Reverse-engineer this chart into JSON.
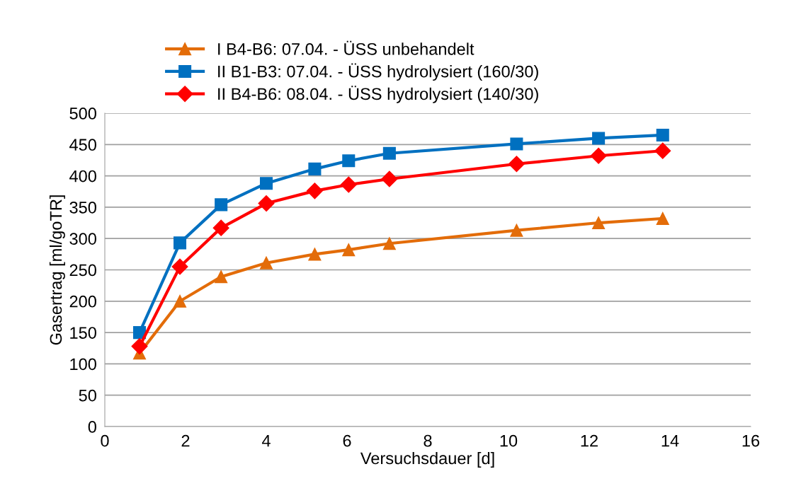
{
  "chart_data": {
    "type": "line",
    "xlabel": "Versuchsdauer [d]",
    "ylabel": "Gasertrag [ml/goTR]",
    "x": [
      0.86,
      1.86,
      2.88,
      4.0,
      5.2,
      6.04,
      7.05,
      10.2,
      12.23,
      13.82
    ],
    "series": [
      {
        "name": "I B4-B6: 07.04. - ÜSS unbehandelt",
        "color": "#e36c09",
        "marker": "triangle",
        "values": [
          117,
          200,
          239,
          261,
          275,
          282,
          292,
          313,
          325,
          332
        ]
      },
      {
        "name": "II B1-B3: 07.04. - ÜSS hydrolysiert (160/30)",
        "color": "#0070c0",
        "marker": "square",
        "values": [
          150,
          293,
          354,
          388,
          411,
          424,
          436,
          451,
          460,
          465
        ]
      },
      {
        "name": "II B4-B6: 08.04. - ÜSS hydrolysiert (140/30)",
        "color": "#ff0000",
        "marker": "diamond",
        "values": [
          128,
          255,
          317,
          356,
          376,
          386,
          395,
          419,
          432,
          440
        ]
      }
    ],
    "xlim": [
      0,
      16
    ],
    "xticks": [
      0,
      2,
      4,
      6,
      8,
      10,
      12,
      14,
      16
    ],
    "ylim": [
      0,
      500
    ],
    "yticks": [
      0,
      50,
      100,
      150,
      200,
      250,
      300,
      350,
      400,
      450,
      500
    ],
    "grid": "y",
    "legend": "top",
    "line_style": "solid"
  }
}
